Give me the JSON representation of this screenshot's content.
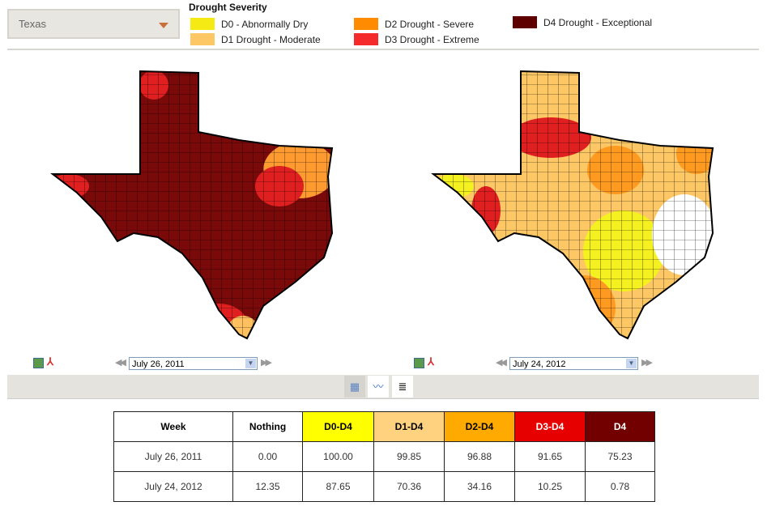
{
  "region_select": {
    "value": "Texas"
  },
  "legend": {
    "title": "Drought Severity",
    "items": [
      {
        "label": "D0 - Abnormally Dry",
        "color": "#f5ea14"
      },
      {
        "label": "D1 Drought - Moderate",
        "color": "#fcc764"
      },
      {
        "label": "D2 Drought - Severe",
        "color": "#ff8c00"
      },
      {
        "label": "D3 Drought - Extreme",
        "color": "#f52b2b"
      },
      {
        "label": "D4 Drought - Exceptional",
        "color": "#5e0000"
      }
    ]
  },
  "left_map": {
    "date": "July 26, 2011"
  },
  "right_map": {
    "date": "July 24, 2012"
  },
  "table": {
    "headers": [
      "Week",
      "Nothing",
      "D0-D4",
      "D1-D4",
      "D2-D4",
      "D3-D4",
      "D4"
    ],
    "header_colors": [
      "#ffffff",
      "#ffffff",
      "#ffff00",
      "#ffd280",
      "#ffaa00",
      "#e60000",
      "#730000"
    ],
    "rows": [
      [
        "July 26, 2011",
        "0.00",
        "100.00",
        "99.85",
        "96.88",
        "91.65",
        "75.23"
      ],
      [
        "July 24, 2012",
        "12.35",
        "87.65",
        "70.36",
        "34.16",
        "10.25",
        "0.78"
      ]
    ]
  }
}
